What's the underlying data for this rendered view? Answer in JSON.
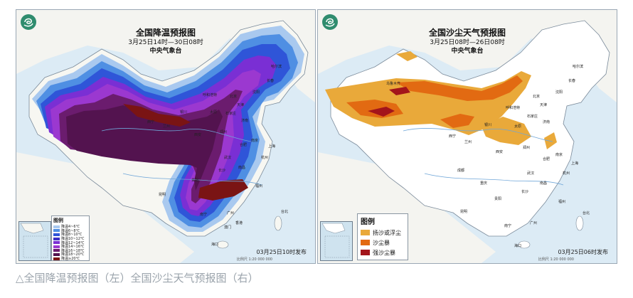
{
  "left_map": {
    "title": "全国降温预报图",
    "time_range": "3月25日14时—30日08时",
    "issuer": "中央气象台",
    "issued": "03月25日10时发布",
    "scale_text": "比例尺 1:20 000 000",
    "legend_title": "图例",
    "legend_items": [
      {
        "label": "降温4~6℃",
        "color": "#a9c9ef"
      },
      {
        "label": "降温6~8℃",
        "color": "#4f8fe3"
      },
      {
        "label": "降温8~10℃",
        "color": "#2f55d8"
      },
      {
        "label": "降温10~12℃",
        "color": "#3c2fc4"
      },
      {
        "label": "降温12~14℃",
        "color": "#7a2fd4"
      },
      {
        "label": "降温14~16℃",
        "color": "#9b38d0"
      },
      {
        "label": "降温16~18℃",
        "color": "#6b1c6e"
      },
      {
        "label": "降温18~20℃",
        "color": "#53134f"
      },
      {
        "label": "降温≥20℃",
        "color": "#7a1414"
      }
    ],
    "cities": [
      "哈尔滨",
      "长春",
      "沈阳",
      "北京",
      "天津",
      "呼和浩特",
      "太原",
      "石家庄",
      "济南",
      "银川",
      "兰州",
      "西宁",
      "西安",
      "郑州",
      "合肥",
      "南京",
      "上海",
      "武汉",
      "长沙",
      "南昌",
      "杭州",
      "福州",
      "贵阳",
      "昆明",
      "南宁",
      "广州",
      "海口",
      "台北",
      "香港",
      "澳门"
    ]
  },
  "right_map": {
    "title": "全国沙尘天气预报图",
    "time_range": "3月25日08时—26日08时",
    "issuer": "中央气象台",
    "issued": "03月25日06时发布",
    "scale_text": "比例尺 1:20 000 000",
    "legend_title": "图例",
    "legend_items": [
      {
        "label": "扬沙或浮尘",
        "color": "#e9a93a"
      },
      {
        "label": "沙尘暴",
        "color": "#e26a12"
      },
      {
        "label": "强沙尘暴",
        "color": "#a3151b"
      }
    ],
    "cities": [
      "乌鲁木齐",
      "哈尔滨",
      "长春",
      "沈阳",
      "呼和浩特",
      "北京",
      "天津",
      "太原",
      "石家庄",
      "济南",
      "银川",
      "西宁",
      "兰州",
      "西安",
      "郑州",
      "合肥",
      "南京",
      "上海",
      "成都",
      "重庆",
      "武汉",
      "长沙",
      "杭州",
      "南昌",
      "福州",
      "贵阳",
      "昆明",
      "南宁",
      "广州",
      "海口",
      "台北"
    ]
  },
  "caption": "△全国降温预报图（左）全国沙尘天气预报图（右）"
}
